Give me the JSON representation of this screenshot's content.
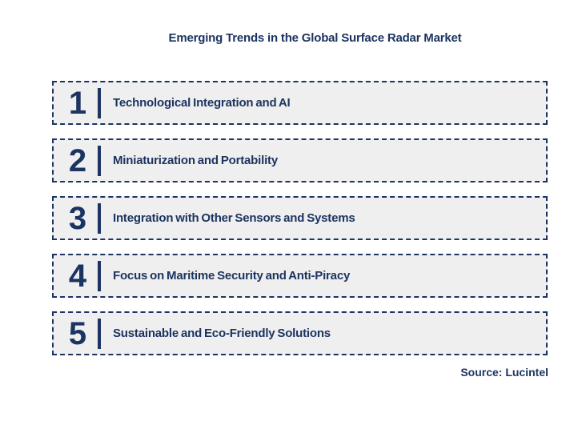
{
  "title": "Emerging Trends in the Global Surface Radar Market",
  "source": "Source: Lucintel",
  "colors": {
    "navy": "#1c3461",
    "box_bg": "#efefef",
    "page_bg": "#ffffff"
  },
  "trends": [
    {
      "number": "1",
      "label": "Technological Integration and AI"
    },
    {
      "number": "2",
      "label": "Miniaturization and Portability"
    },
    {
      "number": "3",
      "label": "Integration with Other Sensors and Systems"
    },
    {
      "number": "4",
      "label": "Focus on Maritime Security and Anti-Piracy"
    },
    {
      "number": "5",
      "label": "Sustainable and Eco-Friendly Solutions"
    }
  ]
}
